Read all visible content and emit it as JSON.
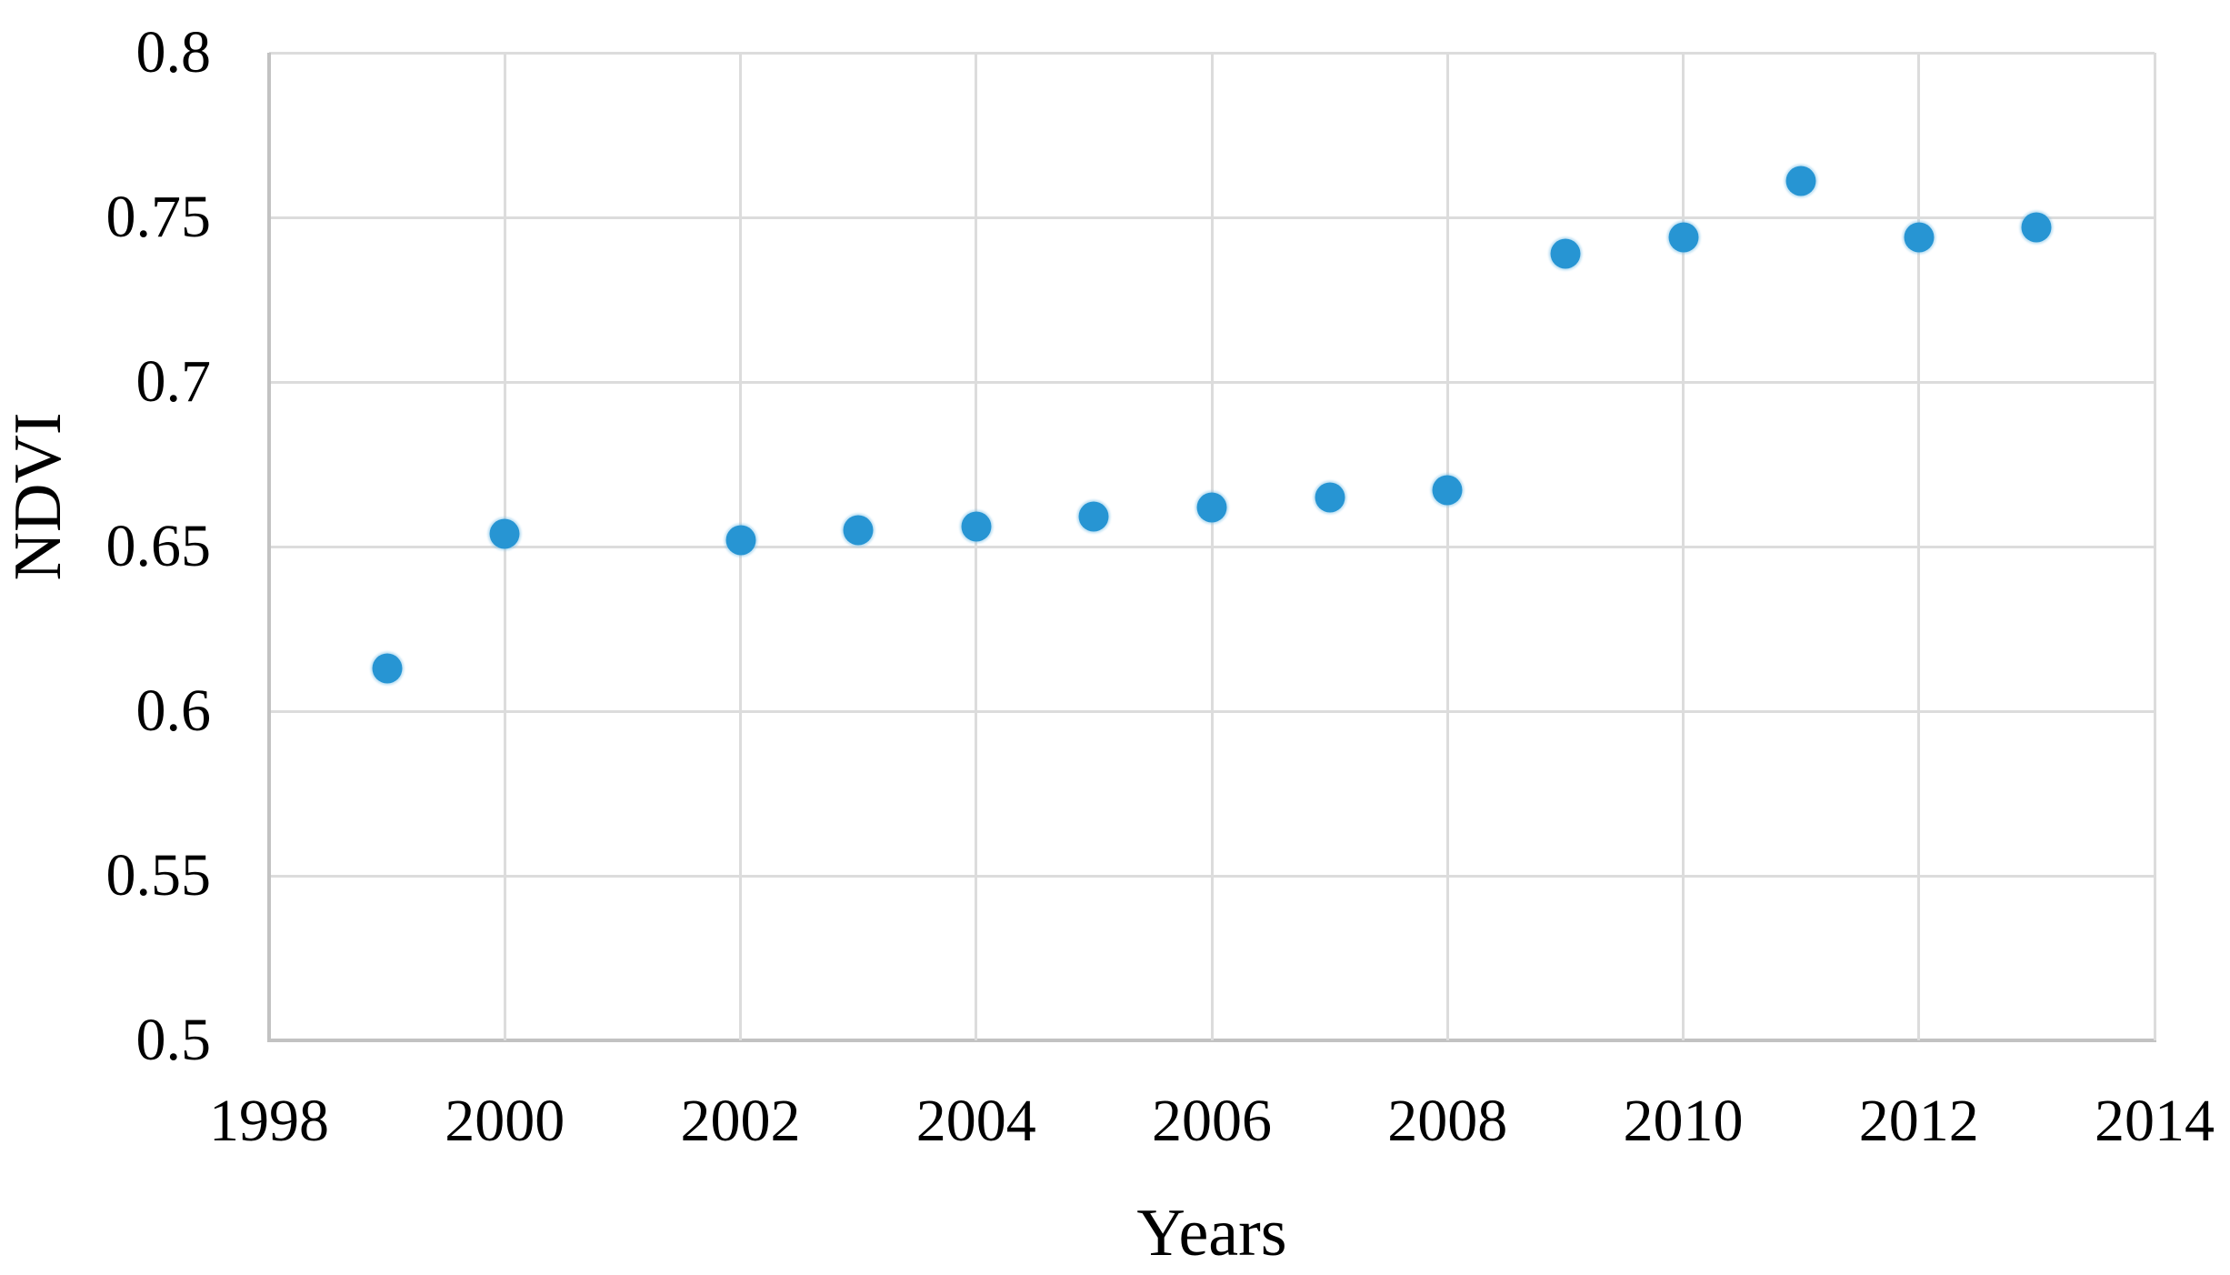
{
  "chart_data": {
    "type": "scatter",
    "title": "",
    "xlabel": "Years",
    "ylabel": "NDVI",
    "series": [
      {
        "name": "NDVI",
        "points": [
          {
            "x": 1999,
            "y": 0.613
          },
          {
            "x": 2000,
            "y": 0.654
          },
          {
            "x": 2002,
            "y": 0.652
          },
          {
            "x": 2003,
            "y": 0.655
          },
          {
            "x": 2004,
            "y": 0.656
          },
          {
            "x": 2005,
            "y": 0.659
          },
          {
            "x": 2006,
            "y": 0.662
          },
          {
            "x": 2007,
            "y": 0.665
          },
          {
            "x": 2008,
            "y": 0.667
          },
          {
            "x": 2009,
            "y": 0.739
          },
          {
            "x": 2010,
            "y": 0.744
          },
          {
            "x": 2011,
            "y": 0.761
          },
          {
            "x": 2012,
            "y": 0.744
          },
          {
            "x": 2013,
            "y": 0.747
          }
        ]
      }
    ],
    "xlim": [
      1998,
      2014
    ],
    "ylim": [
      0.5,
      0.8
    ],
    "x_tick_labels": [
      "1998",
      "2000",
      "2002",
      "2004",
      "2006",
      "2008",
      "2010",
      "2012",
      "2014"
    ],
    "y_tick_labels": [
      "0.5",
      "0.55",
      "0.6",
      "0.65",
      "0.7",
      "0.75",
      "0.8"
    ],
    "grid": true,
    "legend": "none",
    "colors": {
      "marker": "#2795d3",
      "gridline": "#dcdcdc",
      "axis_line": "#c2c2c2",
      "text": "#000000",
      "background": "#ffffff"
    }
  }
}
